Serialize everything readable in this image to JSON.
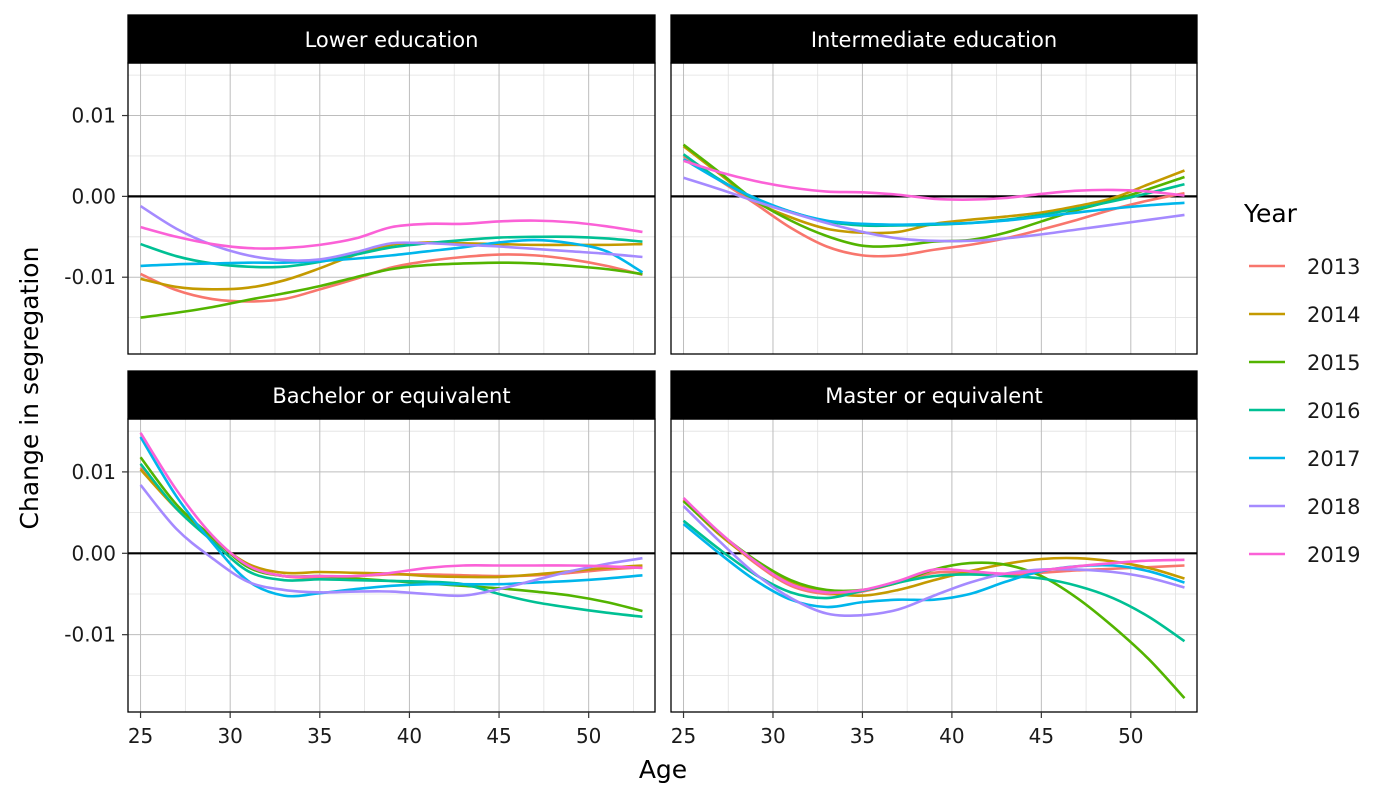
{
  "chart_data": {
    "type": "line",
    "facets": [
      "Lower education",
      "Intermediate education",
      "Bachelor or equivalent",
      "Master or equivalent"
    ],
    "xlabel": "Age",
    "ylabel": "Change in segregation",
    "x_ticks": [
      25,
      30,
      35,
      40,
      45,
      50
    ],
    "x_tick_labels": [
      "25",
      "30",
      "35",
      "40",
      "45",
      "50"
    ],
    "y_ticks": [
      -0.01,
      0,
      0.01
    ],
    "y_tick_labels": [
      "-0.01",
      "0.00",
      "0.01"
    ],
    "xlim": [
      24.3,
      53.7
    ],
    "ylim": [
      -0.0195,
      0.0165
    ],
    "grid": true,
    "reference_line_y": 0,
    "legend": {
      "title": "Year",
      "position": "right",
      "entries": [
        "2013",
        "2014",
        "2015",
        "2016",
        "2017",
        "2018",
        "2019"
      ]
    },
    "colors": {
      "2013": "#F8766D",
      "2014": "#C49A00",
      "2015": "#53B400",
      "2016": "#00C094",
      "2017": "#00B6EB",
      "2018": "#A58AFF",
      "2019": "#FB61D7"
    },
    "x": [
      25,
      27,
      29,
      31,
      33,
      35,
      37,
      39,
      41,
      43,
      45,
      47,
      49,
      51,
      53
    ],
    "panels": [
      {
        "facet": "Lower education",
        "series": [
          {
            "name": "2013",
            "values": [
              -0.0096,
              -0.0116,
              -0.0127,
              -0.013,
              -0.0127,
              -0.0115,
              -0.0102,
              -0.0088,
              -0.008,
              -0.0075,
              -0.0072,
              -0.0073,
              -0.0078,
              -0.0086,
              -0.0097
            ]
          },
          {
            "name": "2014",
            "values": [
              -0.0102,
              -0.0112,
              -0.0115,
              -0.0113,
              -0.0104,
              -0.0089,
              -0.0072,
              -0.006,
              -0.0057,
              -0.0058,
              -0.0059,
              -0.006,
              -0.006,
              -0.006,
              -0.0059
            ]
          },
          {
            "name": "2015",
            "values": [
              -0.015,
              -0.0144,
              -0.0137,
              -0.0128,
              -0.012,
              -0.0111,
              -0.01,
              -0.009,
              -0.0085,
              -0.0083,
              -0.0082,
              -0.0083,
              -0.0086,
              -0.009,
              -0.0096
            ]
          },
          {
            "name": "2016",
            "values": [
              -0.0059,
              -0.0074,
              -0.0083,
              -0.0087,
              -0.0087,
              -0.0081,
              -0.0072,
              -0.0063,
              -0.0058,
              -0.0054,
              -0.0051,
              -0.005,
              -0.005,
              -0.0052,
              -0.0056
            ]
          },
          {
            "name": "2017",
            "values": [
              -0.0086,
              -0.0084,
              -0.0083,
              -0.0082,
              -0.0082,
              -0.008,
              -0.0077,
              -0.0073,
              -0.0068,
              -0.0063,
              -0.0057,
              -0.0054,
              -0.0058,
              -0.0068,
              -0.0094
            ]
          },
          {
            "name": "2018",
            "values": [
              -0.0012,
              -0.004,
              -0.006,
              -0.0073,
              -0.0079,
              -0.0078,
              -0.0069,
              -0.0058,
              -0.0058,
              -0.006,
              -0.0062,
              -0.0065,
              -0.0068,
              -0.0071,
              -0.0075
            ]
          },
          {
            "name": "2019",
            "values": [
              -0.0038,
              -0.005,
              -0.0059,
              -0.0064,
              -0.0064,
              -0.006,
              -0.0052,
              -0.0038,
              -0.0034,
              -0.0034,
              -0.0031,
              -0.003,
              -0.0032,
              -0.0037,
              -0.0044
            ]
          }
        ]
      },
      {
        "facet": "Intermediate education",
        "series": [
          {
            "name": "2013",
            "values": [
              0.005,
              0.002,
              -0.0009,
              -0.0039,
              -0.0062,
              -0.0073,
              -0.0073,
              -0.0066,
              -0.006,
              -0.0052,
              -0.0041,
              -0.0029,
              -0.0016,
              -0.0005,
              0.0004
            ]
          },
          {
            "name": "2014",
            "values": [
              0.0062,
              0.0028,
              -0.0006,
              -0.0026,
              -0.004,
              -0.0045,
              -0.0044,
              -0.0034,
              -0.0029,
              -0.0025,
              -0.002,
              -0.0012,
              -0.0002,
              0.0015,
              0.0032
            ]
          },
          {
            "name": "2015",
            "values": [
              0.0064,
              0.003,
              -0.0005,
              -0.003,
              -0.0049,
              -0.0061,
              -0.0061,
              -0.0056,
              -0.0054,
              -0.0045,
              -0.0031,
              -0.0017,
              -0.0005,
              0.0009,
              0.0024
            ]
          },
          {
            "name": "2016",
            "values": [
              0.0052,
              0.0021,
              -0.0003,
              -0.0019,
              -0.0031,
              -0.0036,
              -0.0036,
              -0.0035,
              -0.0033,
              -0.0029,
              -0.0023,
              -0.0015,
              -0.0006,
              0.0004,
              0.0015
            ]
          },
          {
            "name": "2017",
            "values": [
              0.0046,
              0.002,
              -0.0002,
              -0.0019,
              -0.003,
              -0.0034,
              -0.0035,
              -0.0034,
              -0.0033,
              -0.003,
              -0.0025,
              -0.002,
              -0.0015,
              -0.0011,
              -0.0008
            ]
          },
          {
            "name": "2018",
            "values": [
              0.0023,
              0.0009,
              -0.0006,
              -0.002,
              -0.0033,
              -0.0044,
              -0.0052,
              -0.0055,
              -0.0055,
              -0.0052,
              -0.0047,
              -0.0041,
              -0.0035,
              -0.0029,
              -0.0023
            ]
          },
          {
            "name": "2019",
            "values": [
              0.0044,
              0.003,
              0.0019,
              0.0011,
              0.0006,
              0.0005,
              0.0002,
              -0.0003,
              -0.0004,
              -0.0002,
              0.0003,
              0.0007,
              0.0008,
              0.0006,
              0.0001
            ]
          }
        ]
      },
      {
        "facet": "Bachelor or equivalent",
        "series": [
          {
            "name": "2013",
            "values": [
              0.0105,
              0.0055,
              0.0018,
              -0.0015,
              -0.0028,
              -0.003,
              -0.0028,
              -0.0026,
              -0.0026,
              -0.0027,
              -0.0028,
              -0.0027,
              -0.0024,
              -0.002,
              -0.0017
            ]
          },
          {
            "name": "2014",
            "values": [
              0.0103,
              0.0055,
              0.0018,
              -0.0013,
              -0.0024,
              -0.0023,
              -0.0024,
              -0.0025,
              -0.0028,
              -0.0029,
              -0.0029,
              -0.0026,
              -0.0022,
              -0.0018,
              -0.0015
            ]
          },
          {
            "name": "2015",
            "values": [
              0.0118,
              0.006,
              0.002,
              -0.0017,
              -0.0028,
              -0.0028,
              -0.0031,
              -0.0034,
              -0.0037,
              -0.004,
              -0.0043,
              -0.0047,
              -0.0052,
              -0.006,
              -0.0071
            ]
          },
          {
            "name": "2016",
            "values": [
              0.011,
              0.0055,
              0.0015,
              -0.0022,
              -0.0033,
              -0.0032,
              -0.0033,
              -0.0034,
              -0.0035,
              -0.0038,
              -0.005,
              -0.006,
              -0.0067,
              -0.0073,
              -0.0078
            ]
          },
          {
            "name": "2017",
            "values": [
              0.0143,
              0.007,
              0.0013,
              -0.0034,
              -0.0052,
              -0.0049,
              -0.0044,
              -0.004,
              -0.0038,
              -0.0038,
              -0.0038,
              -0.0036,
              -0.0034,
              -0.0031,
              -0.0027
            ]
          },
          {
            "name": "2018",
            "values": [
              0.0084,
              0.003,
              -0.0006,
              -0.0035,
              -0.0045,
              -0.0048,
              -0.0047,
              -0.0047,
              -0.005,
              -0.0052,
              -0.0044,
              -0.0033,
              -0.0022,
              -0.0013,
              -0.0006
            ]
          },
          {
            "name": "2019",
            "values": [
              0.0148,
              0.0078,
              0.0022,
              -0.0015,
              -0.0028,
              -0.0028,
              -0.0028,
              -0.0024,
              -0.0018,
              -0.0015,
              -0.0015,
              -0.0015,
              -0.0015,
              -0.0016,
              -0.0018
            ]
          }
        ]
      },
      {
        "facet": "Master or equivalent",
        "series": [
          {
            "name": "2013",
            "values": [
              0.0066,
              0.0025,
              -0.0012,
              -0.004,
              -0.005,
              -0.0047,
              -0.0036,
              -0.0024,
              -0.0024,
              -0.0027,
              -0.0024,
              -0.0021,
              -0.0019,
              -0.0017,
              -0.0015
            ]
          },
          {
            "name": "2014",
            "values": [
              0.0065,
              0.0023,
              -0.001,
              -0.0035,
              -0.0048,
              -0.0052,
              -0.0045,
              -0.0033,
              -0.0022,
              -0.0013,
              -0.0007,
              -0.0006,
              -0.001,
              -0.0018,
              -0.0031
            ]
          },
          {
            "name": "2015",
            "values": [
              0.0064,
              0.0025,
              -0.0008,
              -0.0033,
              -0.0045,
              -0.0045,
              -0.0036,
              -0.002,
              -0.0012,
              -0.0014,
              -0.0028,
              -0.0055,
              -0.009,
              -0.013,
              -0.0178
            ]
          },
          {
            "name": "2016",
            "values": [
              0.004,
              0.0005,
              -0.0026,
              -0.0048,
              -0.0055,
              -0.0046,
              -0.0036,
              -0.0028,
              -0.0026,
              -0.0028,
              -0.0031,
              -0.004,
              -0.0055,
              -0.0078,
              -0.0108
            ]
          },
          {
            "name": "2017",
            "values": [
              0.0036,
              0.0,
              -0.0033,
              -0.0057,
              -0.0066,
              -0.006,
              -0.0057,
              -0.0057,
              -0.005,
              -0.0035,
              -0.0022,
              -0.0016,
              -0.0015,
              -0.0022,
              -0.0036
            ]
          },
          {
            "name": "2018",
            "values": [
              0.0058,
              0.0015,
              -0.0025,
              -0.0055,
              -0.0074,
              -0.0076,
              -0.0069,
              -0.0052,
              -0.0036,
              -0.0025,
              -0.002,
              -0.002,
              -0.0023,
              -0.003,
              -0.0042
            ]
          },
          {
            "name": "2019",
            "values": [
              0.0068,
              0.0026,
              -0.001,
              -0.0038,
              -0.0048,
              -0.0045,
              -0.0034,
              -0.002,
              -0.0022,
              -0.0025,
              -0.0021,
              -0.0016,
              -0.0012,
              -0.0009,
              -0.0008
            ]
          }
        ]
      }
    ]
  }
}
